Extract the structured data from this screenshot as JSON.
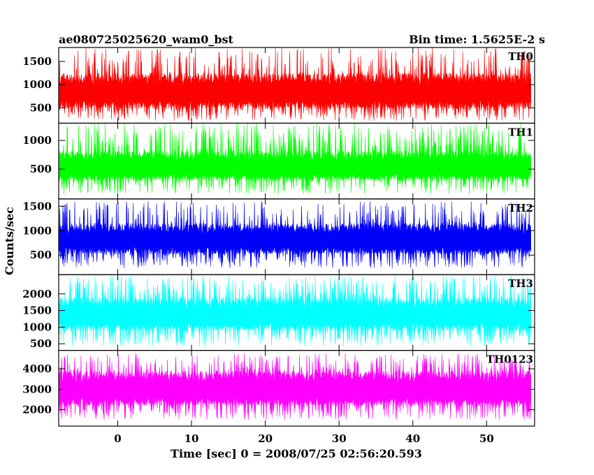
{
  "chart_data": {
    "type": "line",
    "title": "ae080725025620_wam0_bst",
    "subtitle": "Bin time: 1.5625E-2 s",
    "xlabel": "Time [sec] 0 = 2008/07/25 02:56:20.593",
    "ylabel": "Counts/sec",
    "xlim": [
      -8,
      56.5
    ],
    "x_ticks": [
      0,
      10,
      20,
      30,
      40,
      50
    ],
    "x_data_range": [
      -8,
      56
    ],
    "panels": [
      {
        "name": "TH0",
        "color": "#ff0000",
        "ylim": [
          170,
          1800
        ],
        "y_ticks": [
          500,
          1000,
          1500
        ],
        "floor_range": [
          220,
          520
        ],
        "band_range": [
          480,
          1250
        ],
        "peak_range": [
          1050,
          1800
        ]
      },
      {
        "name": "TH1",
        "color": "#00ff00",
        "ylim": [
          -20,
          1300
        ],
        "y_ticks": [
          500,
          1000
        ],
        "floor_range": [
          60,
          360
        ],
        "band_range": [
          300,
          820
        ],
        "peak_range": [
          800,
          1300
        ]
      },
      {
        "name": "TH2",
        "color": "#0000ff",
        "ylim": [
          100,
          1650
        ],
        "y_ticks": [
          500,
          1000,
          1500
        ],
        "floor_range": [
          230,
          560
        ],
        "band_range": [
          520,
          1150
        ],
        "peak_range": [
          1000,
          1600
        ]
      },
      {
        "name": "TH3",
        "color": "#00ffff",
        "ylim": [
          300,
          2580
        ],
        "y_ticks": [
          500,
          1000,
          1500,
          2000
        ],
        "floor_range": [
          420,
          900
        ],
        "band_range": [
          900,
          1900
        ],
        "peak_range": [
          1800,
          2550
        ]
      },
      {
        "name": "TH0123",
        "color": "#ff00ff",
        "ylim": [
          1200,
          4900
        ],
        "y_ticks": [
          2000,
          3000,
          4000
        ],
        "floor_range": [
          1500,
          2300
        ],
        "band_range": [
          2200,
          3900
        ],
        "peak_range": [
          3700,
          4750
        ]
      }
    ]
  }
}
